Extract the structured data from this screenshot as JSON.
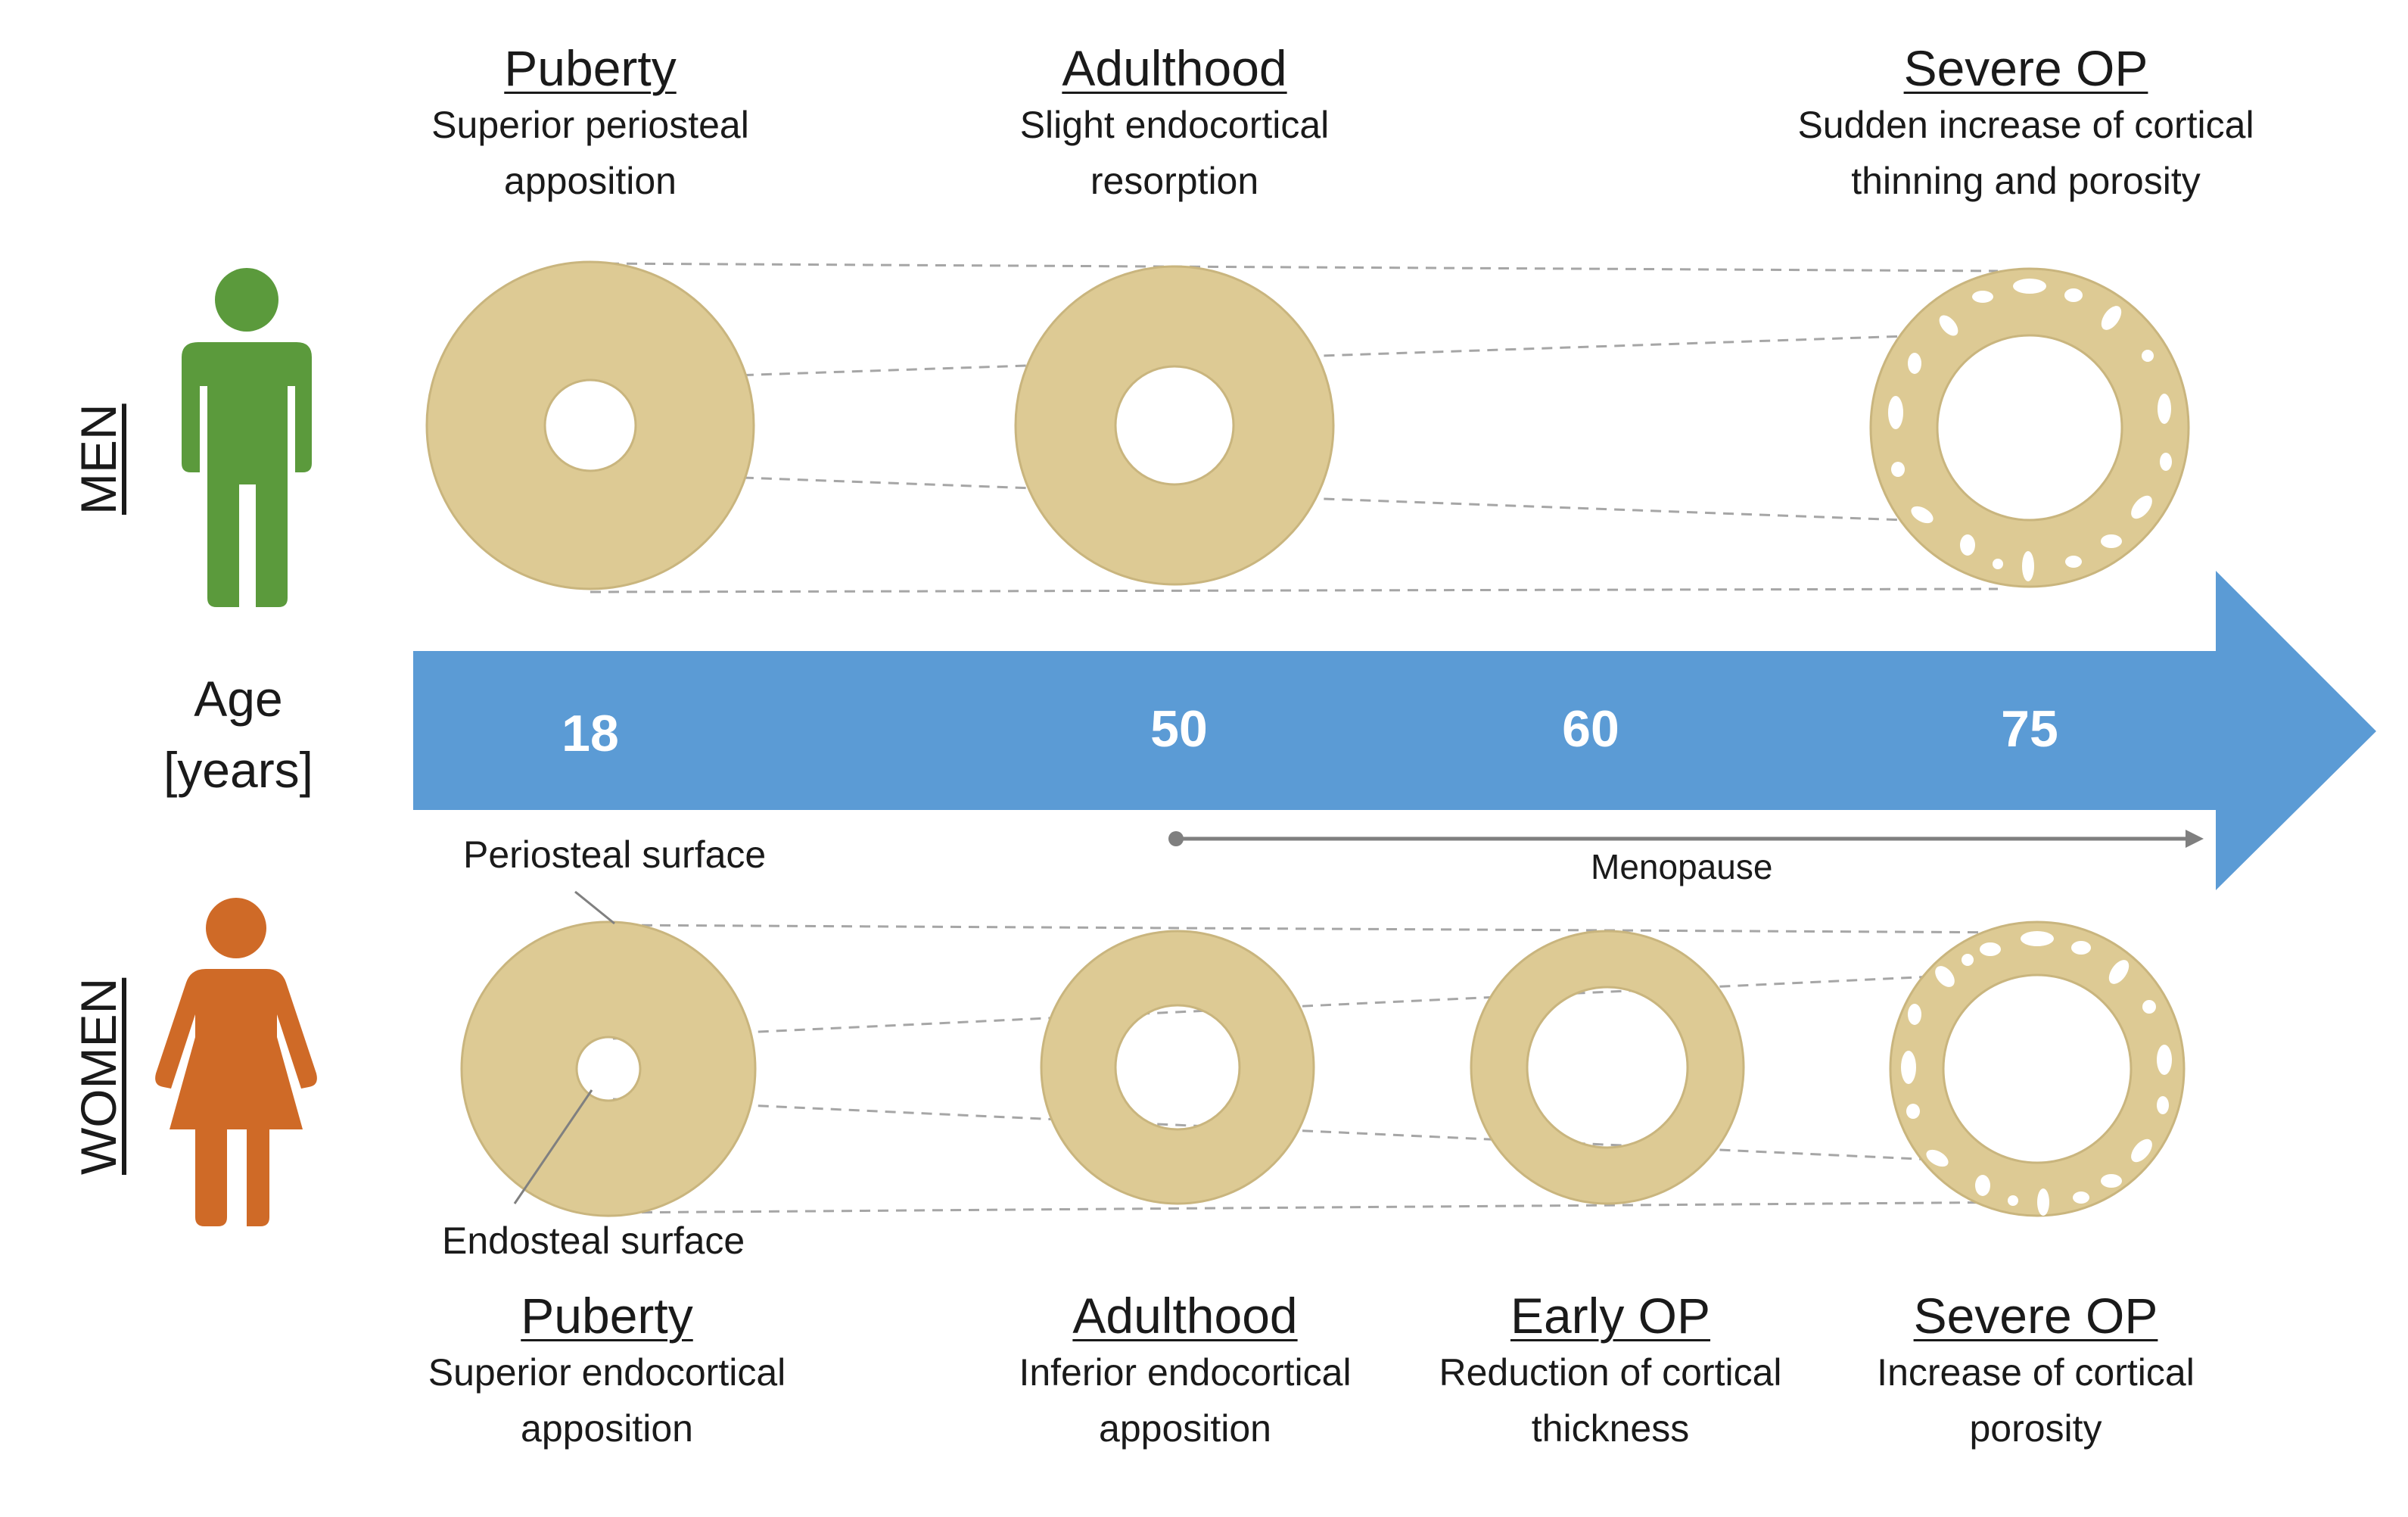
{
  "colors": {
    "bone": "#ddca94",
    "bone_stroke": "#c9b57e",
    "arrow": "#5b9bd5",
    "men": "#5b9a3c",
    "women": "#cf6a27",
    "guide": "#a6a6a6",
    "menopause_line": "#7f7f7f"
  },
  "men": {
    "label": "MEN",
    "icon": "male-person-icon",
    "stages": [
      {
        "title": "Puberty",
        "desc1": "Superior periosteal",
        "desc2": "apposition"
      },
      {
        "title": "Adulthood",
        "desc1": "Slight endocortical",
        "desc2": "resorption"
      },
      {
        "title": "Severe OP",
        "desc1": "Sudden increase of cortical",
        "desc2": "thinning and porosity"
      }
    ]
  },
  "women": {
    "label": "WOMEN",
    "icon": "female-person-icon",
    "stages": [
      {
        "title": "Puberty",
        "desc1": "Superior endocortical",
        "desc2": "apposition"
      },
      {
        "title": "Adulthood",
        "desc1": "Inferior endocortical",
        "desc2": "apposition"
      },
      {
        "title": "Early OP",
        "desc1": "Reduction of cortical",
        "desc2": "thickness"
      },
      {
        "title": "Severe OP",
        "desc1": "Increase of cortical",
        "desc2": "porosity"
      }
    ]
  },
  "age_axis": {
    "label1": "Age",
    "label2": "[years]",
    "ticks": [
      "18",
      "50",
      "60",
      "75"
    ]
  },
  "annotations": {
    "periosteal": "Periosteal surface",
    "endosteal": "Endosteal surface",
    "menopause": "Menopause"
  }
}
